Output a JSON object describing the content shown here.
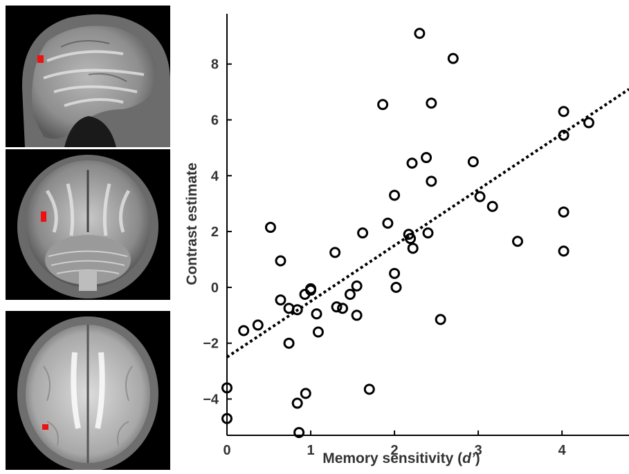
{
  "figure": {
    "brain_views": [
      "sagittal",
      "coronal",
      "axial"
    ],
    "activation_color": "#ee1111"
  },
  "chart_data": {
    "type": "scatter",
    "xlabel": "Memory sensitivity (d’)",
    "xlabel_prefix": "Memory sensitivity (",
    "xlabel_italic": "d’",
    "xlabel_suffix": ")",
    "ylabel": "Contrast estimate",
    "xlim": [
      0,
      4.8
    ],
    "ylim": [
      -5.3,
      9.8
    ],
    "xticks": [
      0,
      1,
      2,
      3,
      4
    ],
    "yticks": [
      -4,
      -2,
      0,
      2,
      4,
      6,
      8
    ],
    "ytick_labels": [
      "−4",
      "−2",
      "0",
      "2",
      "4",
      "6",
      "8"
    ],
    "xtick_labels": [
      "0",
      "1",
      "2",
      "3",
      "4"
    ],
    "grid": false,
    "marker": "open-circle",
    "marker_color": "#000000",
    "fit_line": {
      "style": "dotted",
      "slope": 2.0,
      "intercept": -2.5,
      "color": "#000000"
    },
    "points": [
      [
        0.0,
        -3.6
      ],
      [
        0.0,
        -4.7
      ],
      [
        0.2,
        -1.55
      ],
      [
        0.37,
        -1.35
      ],
      [
        0.52,
        2.15
      ],
      [
        0.64,
        0.95
      ],
      [
        0.64,
        -0.45
      ],
      [
        0.74,
        -0.75
      ],
      [
        0.74,
        -2.0
      ],
      [
        0.84,
        -0.8
      ],
      [
        0.84,
        -4.15
      ],
      [
        0.86,
        -5.2
      ],
      [
        0.93,
        -0.25
      ],
      [
        0.94,
        -3.8
      ],
      [
        1.0,
        -0.05
      ],
      [
        1.0,
        -0.1
      ],
      [
        1.07,
        -0.95
      ],
      [
        1.09,
        -1.6
      ],
      [
        1.29,
        1.25
      ],
      [
        1.31,
        -0.7
      ],
      [
        1.38,
        -0.75
      ],
      [
        1.47,
        -0.25
      ],
      [
        1.55,
        0.05
      ],
      [
        1.55,
        -1.0
      ],
      [
        1.62,
        1.95
      ],
      [
        1.7,
        -3.65
      ],
      [
        1.86,
        6.55
      ],
      [
        1.92,
        2.3
      ],
      [
        2.0,
        3.3
      ],
      [
        2.0,
        0.5
      ],
      [
        2.02,
        0.0
      ],
      [
        2.17,
        1.9
      ],
      [
        2.19,
        1.75
      ],
      [
        2.21,
        4.45
      ],
      [
        2.22,
        1.4
      ],
      [
        2.3,
        9.1
      ],
      [
        2.38,
        4.65
      ],
      [
        2.4,
        1.95
      ],
      [
        2.44,
        6.6
      ],
      [
        2.44,
        3.8
      ],
      [
        2.55,
        -1.15
      ],
      [
        2.7,
        8.2
      ],
      [
        2.94,
        4.5
      ],
      [
        3.02,
        3.25
      ],
      [
        3.17,
        2.9
      ],
      [
        3.47,
        1.65
      ],
      [
        4.02,
        6.3
      ],
      [
        4.02,
        5.45
      ],
      [
        4.02,
        2.7
      ],
      [
        4.02,
        1.3
      ],
      [
        4.32,
        5.9
      ]
    ]
  }
}
